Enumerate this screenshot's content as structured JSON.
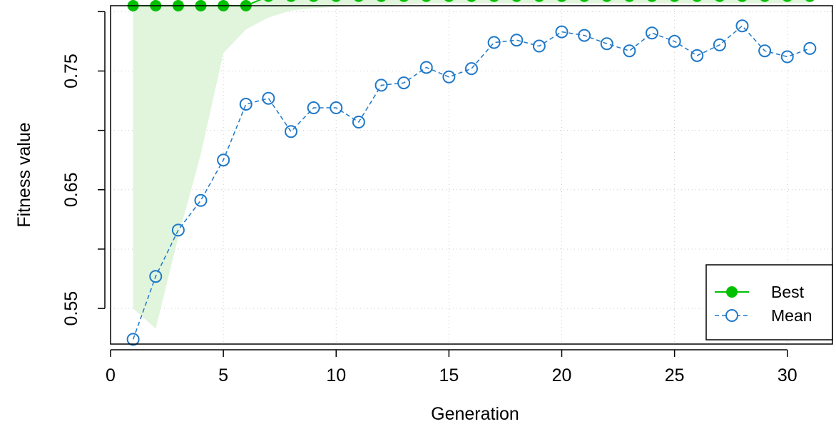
{
  "chart_data": {
    "type": "line",
    "xlabel": "Generation",
    "ylabel": "Fitness value",
    "xlim": [
      0,
      32
    ],
    "ylim": [
      0.52,
      0.805
    ],
    "x_ticks": [
      0,
      5,
      10,
      15,
      20,
      25,
      30
    ],
    "y_ticks": [
      0.55,
      0.65,
      0.75
    ],
    "y_tick_labels": [
      "0.55",
      "0.65",
      "0.75"
    ],
    "y_grid": [
      0.55,
      0.6,
      0.65,
      0.7,
      0.75,
      0.8
    ],
    "x_grid": [
      5,
      10,
      15,
      20,
      25,
      30
    ],
    "grid": true,
    "legend_position": "bottom-right",
    "x": [
      1,
      2,
      3,
      4,
      5,
      6,
      7,
      8,
      9,
      10,
      11,
      12,
      13,
      14,
      15,
      16,
      17,
      18,
      19,
      20,
      21,
      22,
      23,
      24,
      25,
      26,
      27,
      28,
      29,
      30,
      31
    ],
    "series": [
      {
        "name": "Best",
        "color": "#00c000",
        "marker": "filled-circle",
        "line": "solid",
        "values": [
          0.805,
          0.805,
          0.805,
          0.805,
          0.805,
          0.805,
          0.813,
          0.813,
          0.813,
          0.813,
          0.813,
          0.813,
          0.813,
          0.813,
          0.813,
          0.813,
          0.813,
          0.813,
          0.813,
          0.813,
          0.813,
          0.813,
          0.813,
          0.813,
          0.813,
          0.813,
          0.813,
          0.813,
          0.813,
          0.813,
          0.813
        ]
      },
      {
        "name": "Mean",
        "color": "#1f78c8",
        "marker": "open-circle",
        "line": "dashed",
        "values": [
          0.524,
          0.577,
          0.616,
          0.641,
          0.675,
          0.722,
          0.727,
          0.699,
          0.719,
          0.719,
          0.707,
          0.738,
          0.74,
          0.753,
          0.745,
          0.752,
          0.774,
          0.776,
          0.771,
          0.783,
          0.78,
          0.773,
          0.767,
          0.782,
          0.775,
          0.763,
          0.772,
          0.788,
          0.767,
          0.762,
          0.769
        ]
      }
    ],
    "band": {
      "color": "#e0f5dc",
      "lower": [
        0.55,
        0.533,
        0.61,
        0.68,
        0.765,
        0.785,
        0.795,
        0.801,
        0.803,
        0.804,
        0.805,
        0.805,
        0.806,
        0.807,
        0.807,
        0.807,
        0.807,
        0.807,
        0.807,
        0.807,
        0.807,
        0.807,
        0.807,
        0.807,
        0.807,
        0.807,
        0.807,
        0.807,
        0.807,
        0.807,
        0.807
      ]
    }
  }
}
